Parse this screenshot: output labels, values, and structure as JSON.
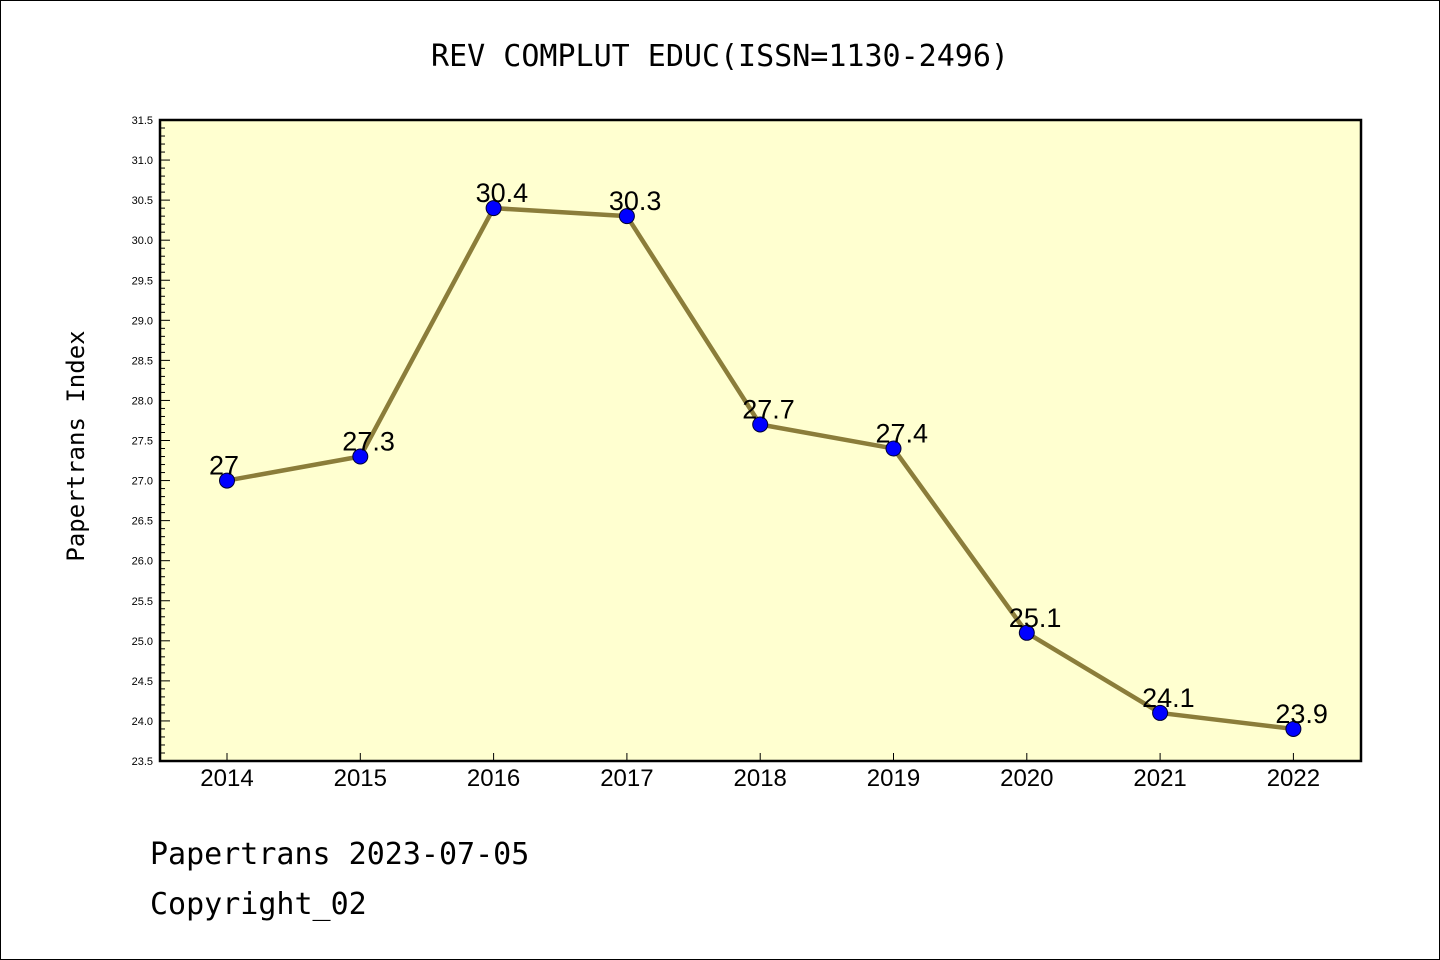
{
  "chart_data": {
    "type": "line",
    "title": "REV COMPLUT EDUC(ISSN=1130-2496)",
    "xlabel": "",
    "ylabel": "Papertrans Index",
    "categories": [
      "2014",
      "2015",
      "2016",
      "2017",
      "2018",
      "2019",
      "2020",
      "2021",
      "2022"
    ],
    "values": [
      27,
      27.3,
      30.4,
      30.3,
      27.7,
      27.4,
      25.1,
      24.1,
      23.9
    ],
    "data_labels": [
      "27",
      "27.3",
      "30.4",
      "30.3",
      "27.7",
      "27.4",
      "25.1",
      "24.1",
      "23.9"
    ],
    "ylim": [
      23.5,
      31.5
    ],
    "yticks": [
      "23.5",
      "24.0",
      "24.5",
      "25.0",
      "25.5",
      "26.0",
      "26.5",
      "27.0",
      "27.5",
      "28.0",
      "28.5",
      "29.0",
      "29.5",
      "30.0",
      "30.5",
      "31.0",
      "31.5"
    ],
    "grid": false,
    "colors": {
      "plot_background": "#ffffd0",
      "line": "#8b7d3a",
      "marker": "#0000ff"
    }
  },
  "footer": {
    "line1": "Papertrans 2023-07-05",
    "line2": "Copyright_02"
  }
}
